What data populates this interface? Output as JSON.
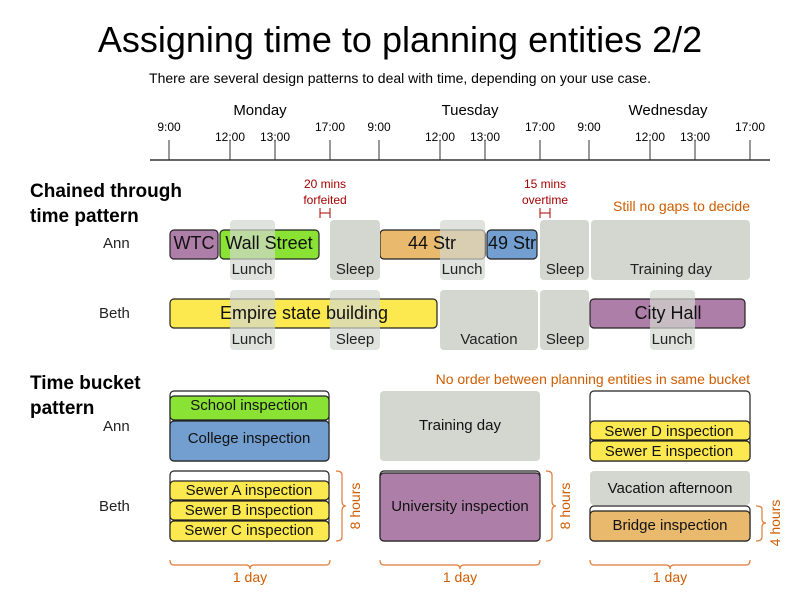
{
  "title": "Assigning time to planning entities 2/2",
  "subtitle": "There are several design patterns to deal with time, depending on your use case.",
  "timeline": {
    "days": [
      "Monday",
      "Tuesday",
      "Wednesday"
    ],
    "ticks": [
      "9:00",
      "12:00",
      "13:00",
      "17:00",
      "9:00",
      "12:00",
      "13:00",
      "17:00",
      "9:00",
      "12:00",
      "13:00",
      "17:00"
    ]
  },
  "colors": {
    "purple": "#ad7fa8",
    "green": "#8ae234",
    "orange": "#e9b96e",
    "blue": "#729fcf",
    "yellow": "#fce94f",
    "gray": "#d3d7cf",
    "note": "#ce5c00",
    "warning": "#a40000"
  },
  "chained": {
    "heading_1": "Chained through",
    "heading_2": "time pattern",
    "note": "Still no gaps to decide",
    "forfeit": [
      "20 mins",
      "forfeited"
    ],
    "overtime": [
      "15 mins",
      "overtime"
    ],
    "ann": {
      "label": "Ann",
      "blocks": [
        "Lunch",
        "Sleep",
        "Lunch",
        "Sleep",
        "Training day"
      ],
      "tasks": [
        "WTC",
        "Wall Street",
        "44 Str",
        "49 Str"
      ]
    },
    "beth": {
      "label": "Beth",
      "blocks": [
        "Lunch",
        "Sleep",
        "Vacation",
        "Sleep",
        "Lunch"
      ],
      "tasks": [
        "Empire state building",
        "City Hall"
      ]
    }
  },
  "bucket": {
    "heading_1": "Time bucket",
    "heading_2": "pattern",
    "note": "No order between planning entities in same bucket",
    "ann": {
      "label": "Ann",
      "mon": [
        "School inspection",
        "College inspection"
      ],
      "tue": "Training day",
      "wed": [
        "Sewer D inspection",
        "Sewer E inspection"
      ]
    },
    "beth": {
      "label": "Beth",
      "mon": [
        "Sewer A inspection",
        "Sewer B inspection",
        "Sewer C inspection"
      ],
      "tue": "University inspection",
      "wed_block": "Vacation afternoon",
      "wed": "Bridge inspection"
    },
    "durations": [
      "8 hours",
      "8 hours",
      "4 hours"
    ],
    "day_spans": [
      "1 day",
      "1 day",
      "1 day"
    ]
  }
}
